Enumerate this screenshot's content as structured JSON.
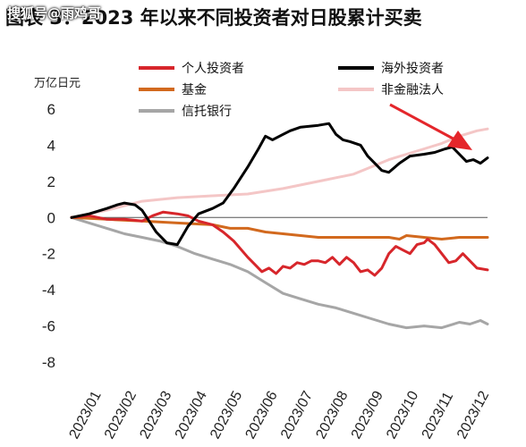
{
  "title": "图表 3：2023 年以来不同投资者对日股累计买卖",
  "watermark": "搜狐号@雨鸡哥",
  "chart_data": {
    "type": "line",
    "unit": "万亿日元",
    "ylim": [
      -8,
      6
    ],
    "yticks": [
      6,
      4,
      2,
      0,
      -2,
      -4,
      -6,
      -8
    ],
    "x_labels": [
      "2023/01",
      "2023/02",
      "2023/03",
      "2023/04",
      "2023/05",
      "2023/06",
      "2023/07",
      "2023/08",
      "2023/09",
      "2023/10",
      "2023/11",
      "2023/12"
    ],
    "x_range": [
      0,
      11.8
    ],
    "legend": [
      {
        "name": "个人投资者",
        "color": "#d7262b"
      },
      {
        "name": "海外投资者",
        "color": "#000000"
      },
      {
        "name": "基金",
        "color": "#d2691e"
      },
      {
        "name": "非金融法人",
        "color": "#f4c6c6"
      },
      {
        "name": "信托银行",
        "color": "#a6a6a6"
      }
    ],
    "series": [
      {
        "name": "个人投资者",
        "color": "#d7262b",
        "points": [
          [
            0,
            0
          ],
          [
            0.5,
            0.1
          ],
          [
            1,
            -0.1
          ],
          [
            1.5,
            -0.1
          ],
          [
            2,
            -0.2
          ],
          [
            2.3,
            0.1
          ],
          [
            2.6,
            0.3
          ],
          [
            3,
            0.2
          ],
          [
            3.3,
            0.1
          ],
          [
            3.6,
            -0.2
          ],
          [
            4,
            -0.4
          ],
          [
            4.3,
            -0.8
          ],
          [
            4.6,
            -1.3
          ],
          [
            5,
            -2.2
          ],
          [
            5.2,
            -2.6
          ],
          [
            5.4,
            -3.0
          ],
          [
            5.6,
            -2.8
          ],
          [
            5.8,
            -3.1
          ],
          [
            6,
            -2.7
          ],
          [
            6.2,
            -2.8
          ],
          [
            6.4,
            -2.5
          ],
          [
            6.6,
            -2.6
          ],
          [
            6.8,
            -2.4
          ],
          [
            7,
            -2.4
          ],
          [
            7.2,
            -2.5
          ],
          [
            7.4,
            -2.2
          ],
          [
            7.6,
            -2.6
          ],
          [
            7.8,
            -2.2
          ],
          [
            8,
            -2.5
          ],
          [
            8.2,
            -3.0
          ],
          [
            8.4,
            -2.9
          ],
          [
            8.6,
            -3.2
          ],
          [
            8.8,
            -2.8
          ],
          [
            9,
            -2.0
          ],
          [
            9.2,
            -1.6
          ],
          [
            9.4,
            -1.8
          ],
          [
            9.6,
            -2.0
          ],
          [
            9.8,
            -1.5
          ],
          [
            10,
            -1.4
          ],
          [
            10.1,
            -1.2
          ],
          [
            10.3,
            -1.5
          ],
          [
            10.5,
            -2.0
          ],
          [
            10.7,
            -2.5
          ],
          [
            10.9,
            -2.4
          ],
          [
            11.1,
            -2.0
          ],
          [
            11.3,
            -2.4
          ],
          [
            11.5,
            -2.8
          ],
          [
            11.8,
            -2.9
          ]
        ]
      },
      {
        "name": "海外投资者",
        "color": "#000000",
        "points": [
          [
            0,
            0
          ],
          [
            0.5,
            0.2
          ],
          [
            1,
            0.5
          ],
          [
            1.3,
            0.7
          ],
          [
            1.5,
            0.8
          ],
          [
            1.8,
            0.7
          ],
          [
            2,
            0.4
          ],
          [
            2.2,
            -0.2
          ],
          [
            2.4,
            -0.8
          ],
          [
            2.7,
            -1.4
          ],
          [
            3,
            -1.5
          ],
          [
            3.3,
            -0.5
          ],
          [
            3.6,
            0.2
          ],
          [
            4,
            0.5
          ],
          [
            4.3,
            0.8
          ],
          [
            4.6,
            1.6
          ],
          [
            5,
            2.8
          ],
          [
            5.3,
            3.8
          ],
          [
            5.5,
            4.5
          ],
          [
            5.7,
            4.3
          ],
          [
            6,
            4.6
          ],
          [
            6.2,
            4.8
          ],
          [
            6.5,
            5.0
          ],
          [
            7,
            5.1
          ],
          [
            7.3,
            5.2
          ],
          [
            7.5,
            4.6
          ],
          [
            7.7,
            4.3
          ],
          [
            7.9,
            4.2
          ],
          [
            8.2,
            4.0
          ],
          [
            8.4,
            3.4
          ],
          [
            8.6,
            3.0
          ],
          [
            8.8,
            2.6
          ],
          [
            9,
            2.5
          ],
          [
            9.3,
            3.0
          ],
          [
            9.6,
            3.4
          ],
          [
            10,
            3.5
          ],
          [
            10.3,
            3.6
          ],
          [
            10.6,
            3.8
          ],
          [
            10.8,
            3.9
          ],
          [
            11,
            3.5
          ],
          [
            11.2,
            3.1
          ],
          [
            11.4,
            3.2
          ],
          [
            11.6,
            3.0
          ],
          [
            11.8,
            3.3
          ]
        ]
      },
      {
        "name": "基金",
        "color": "#d2691e",
        "points": [
          [
            0,
            0
          ],
          [
            1,
            -0.1
          ],
          [
            2,
            -0.2
          ],
          [
            3,
            -0.3
          ],
          [
            4,
            -0.4
          ],
          [
            4.5,
            -0.6
          ],
          [
            5,
            -0.6
          ],
          [
            5.5,
            -0.8
          ],
          [
            6,
            -0.9
          ],
          [
            6.5,
            -1.0
          ],
          [
            7,
            -1.1
          ],
          [
            8,
            -1.1
          ],
          [
            9,
            -1.1
          ],
          [
            9.3,
            -1.2
          ],
          [
            9.5,
            -1.0
          ],
          [
            10,
            -1.1
          ],
          [
            10.5,
            -1.2
          ],
          [
            11,
            -1.1
          ],
          [
            11.8,
            -1.1
          ]
        ]
      },
      {
        "name": "非金融法人",
        "color": "#f4c6c6",
        "points": [
          [
            0,
            0
          ],
          [
            1,
            0.4
          ],
          [
            2,
            0.9
          ],
          [
            3,
            1.1
          ],
          [
            4,
            1.2
          ],
          [
            5,
            1.3
          ],
          [
            6,
            1.6
          ],
          [
            7,
            2.0
          ],
          [
            8,
            2.4
          ],
          [
            8.5,
            2.8
          ],
          [
            9,
            3.2
          ],
          [
            9.5,
            3.5
          ],
          [
            10,
            3.8
          ],
          [
            10.5,
            4.1
          ],
          [
            11,
            4.5
          ],
          [
            11.5,
            4.8
          ],
          [
            11.8,
            4.9
          ]
        ]
      },
      {
        "name": "信托银行",
        "color": "#a6a6a6",
        "points": [
          [
            0,
            0
          ],
          [
            0.5,
            -0.3
          ],
          [
            1,
            -0.6
          ],
          [
            1.5,
            -0.9
          ],
          [
            2,
            -1.1
          ],
          [
            2.5,
            -1.3
          ],
          [
            3,
            -1.6
          ],
          [
            3.5,
            -2.0
          ],
          [
            4,
            -2.3
          ],
          [
            4.5,
            -2.6
          ],
          [
            5,
            -3.0
          ],
          [
            5.5,
            -3.6
          ],
          [
            6,
            -4.2
          ],
          [
            6.5,
            -4.5
          ],
          [
            7,
            -4.8
          ],
          [
            7.5,
            -5.0
          ],
          [
            8,
            -5.3
          ],
          [
            8.5,
            -5.6
          ],
          [
            9,
            -5.9
          ],
          [
            9.5,
            -6.1
          ],
          [
            10,
            -6.0
          ],
          [
            10.5,
            -6.1
          ],
          [
            11,
            -5.8
          ],
          [
            11.3,
            -5.9
          ],
          [
            11.6,
            -5.7
          ],
          [
            11.8,
            -5.9
          ]
        ]
      }
    ],
    "annotation": "arrow"
  }
}
